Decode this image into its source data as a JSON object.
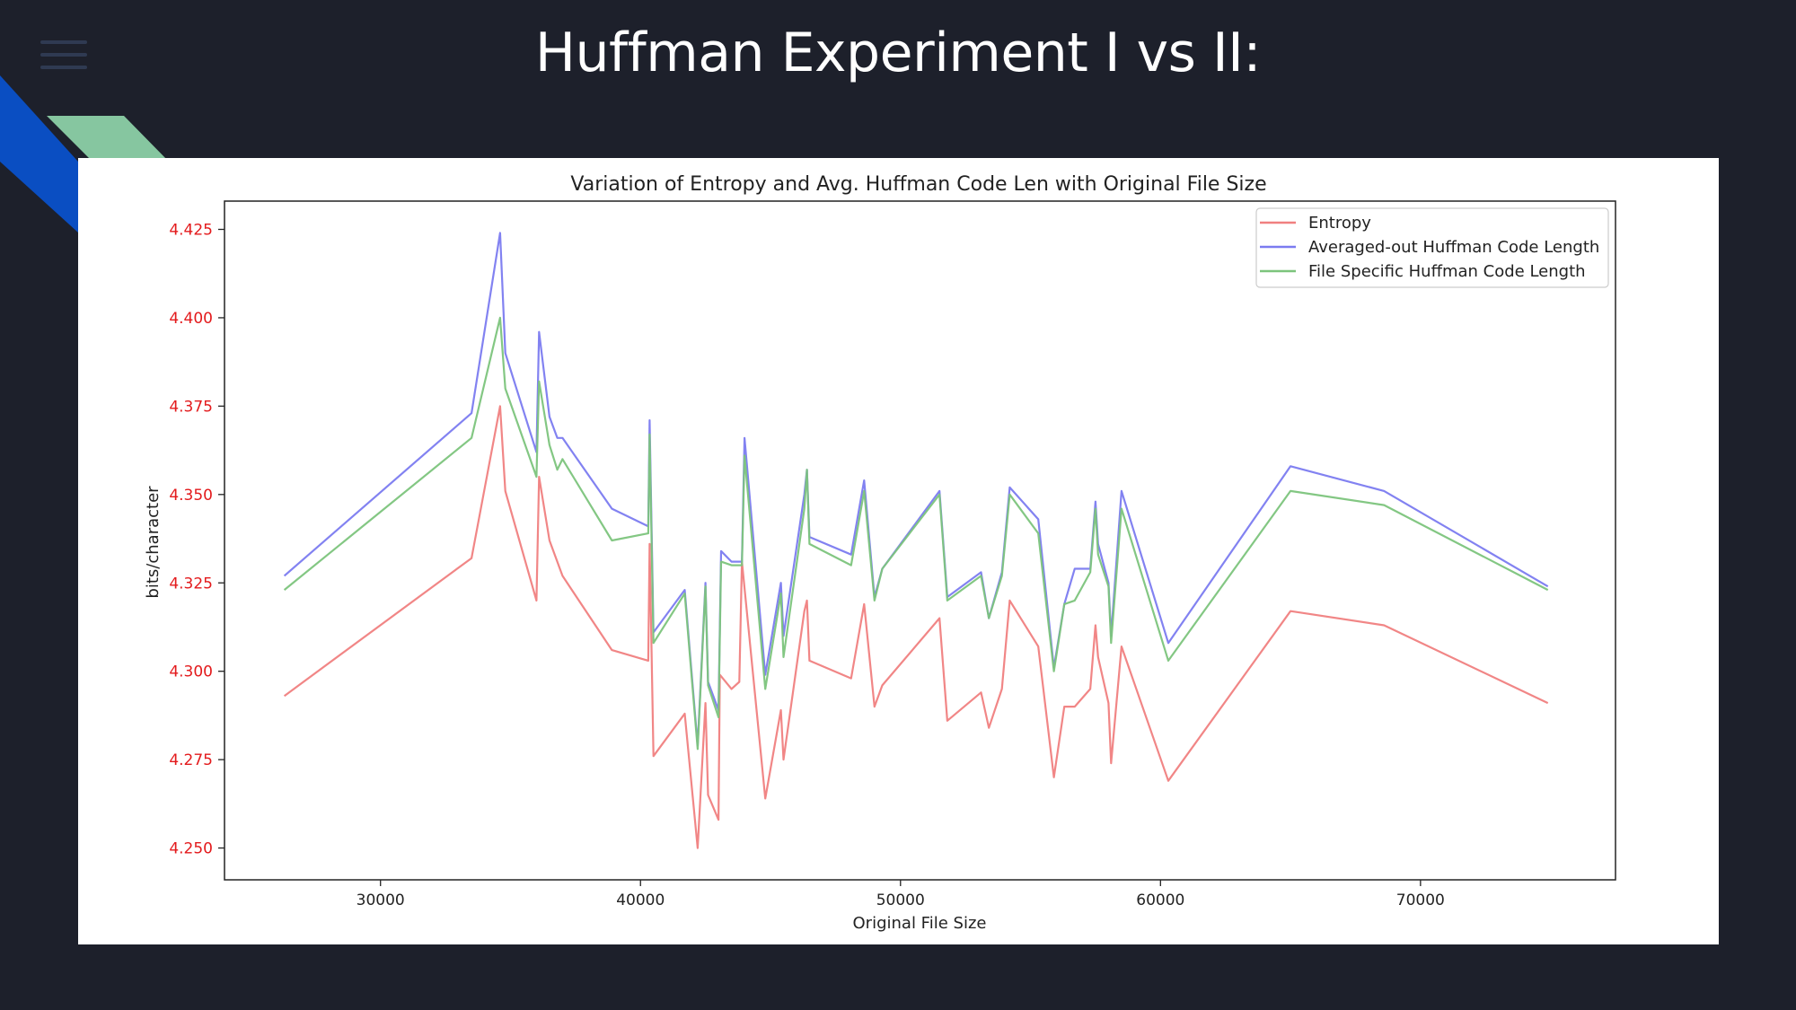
{
  "slide": {
    "title": "Huffman Experiment I vs II:"
  },
  "colors": {
    "background": "#1d202b",
    "entropy": "#f08080",
    "averaged": "#7b7bf0",
    "file_specific": "#7cc47c",
    "ytick": "#e31a1c",
    "deco_blue": "#0a4ec2",
    "deco_green": "#86c6a0"
  },
  "icons": {
    "menu": "hamburger-menu-icon"
  },
  "chart_data": {
    "type": "line",
    "title": "Variation of Entropy and Avg. Huffman Code Len with Original File Size",
    "xlabel": "Original File Size",
    "ylabel": "bits/character",
    "xlim": [
      24000,
      77500
    ],
    "ylim": [
      4.241,
      4.433
    ],
    "xticks": [
      30000,
      40000,
      50000,
      60000,
      70000
    ],
    "yticks": [
      4.25,
      4.275,
      4.3,
      4.325,
      4.35,
      4.375,
      4.4,
      4.425
    ],
    "xtick_labels": [
      "30000",
      "40000",
      "50000",
      "60000",
      "70000"
    ],
    "ytick_labels": [
      "4.250",
      "4.275",
      "4.300",
      "4.325",
      "4.350",
      "4.375",
      "4.400",
      "4.425"
    ],
    "legend": "top-right",
    "grid": false,
    "series": [
      {
        "name": "Entropy",
        "color": "#f08080",
        "x": [
          26300,
          33500,
          34600,
          34800,
          36000,
          36100,
          36500,
          37000,
          38900,
          40300,
          40350,
          40500,
          41700,
          42200,
          42500,
          42600,
          43000,
          43050,
          43500,
          43800,
          43900,
          44800,
          45400,
          45500,
          46300,
          46400,
          46500,
          48100,
          48600,
          49000,
          49300,
          51500,
          51800,
          53100,
          53400,
          53900,
          54200,
          55300,
          55900,
          56300,
          56700,
          57300,
          57500,
          57600,
          58000,
          58100,
          58500,
          60300,
          65000,
          68600,
          74900
        ],
        "y": [
          4.293,
          4.332,
          4.375,
          4.351,
          4.32,
          4.355,
          4.337,
          4.327,
          4.306,
          4.303,
          4.336,
          4.276,
          4.288,
          4.25,
          4.291,
          4.265,
          4.258,
          4.299,
          4.295,
          4.297,
          4.331,
          4.264,
          4.289,
          4.275,
          4.317,
          4.32,
          4.303,
          4.298,
          4.319,
          4.29,
          4.296,
          4.315,
          4.286,
          4.294,
          4.284,
          4.295,
          4.32,
          4.307,
          4.27,
          4.29,
          4.29,
          4.295,
          4.313,
          4.304,
          4.291,
          4.274,
          4.307,
          4.269,
          4.317,
          4.313,
          4.291
        ]
      },
      {
        "name": "Averaged-out Huffman Code Length",
        "color": "#7b7bf0",
        "x": [
          26300,
          33500,
          34600,
          34800,
          36000,
          36100,
          36500,
          36800,
          37000,
          38900,
          40300,
          40350,
          40500,
          41700,
          42200,
          42500,
          42600,
          43000,
          43100,
          43500,
          43900,
          44000,
          44800,
          45400,
          45500,
          46300,
          46400,
          46500,
          48100,
          48600,
          49000,
          49300,
          51500,
          51800,
          53100,
          53400,
          53900,
          54200,
          55300,
          55900,
          56300,
          56700,
          57300,
          57500,
          57600,
          58000,
          58100,
          58500,
          60300,
          65000,
          68600,
          74900
        ],
        "y": [
          4.327,
          4.373,
          4.424,
          4.39,
          4.362,
          4.396,
          4.372,
          4.366,
          4.366,
          4.346,
          4.341,
          4.371,
          4.311,
          4.323,
          4.279,
          4.325,
          4.297,
          4.289,
          4.334,
          4.331,
          4.331,
          4.366,
          4.299,
          4.325,
          4.31,
          4.35,
          4.357,
          4.338,
          4.333,
          4.354,
          4.321,
          4.329,
          4.351,
          4.321,
          4.328,
          4.315,
          4.328,
          4.352,
          4.343,
          4.301,
          4.319,
          4.329,
          4.329,
          4.348,
          4.336,
          4.325,
          4.31,
          4.351,
          4.308,
          4.358,
          4.351,
          4.324
        ]
      },
      {
        "name": "File Specific Huffman Code Length",
        "color": "#7cc47c",
        "x": [
          26300,
          33500,
          34600,
          34800,
          36000,
          36100,
          36500,
          36800,
          37000,
          38900,
          40300,
          40350,
          40500,
          41700,
          42200,
          42500,
          42600,
          43000,
          43100,
          43500,
          43900,
          44000,
          44800,
          45400,
          45500,
          46300,
          46400,
          46500,
          48100,
          48600,
          49000,
          49300,
          51500,
          51800,
          53100,
          53400,
          53900,
          54200,
          55300,
          55900,
          56300,
          56700,
          57300,
          57500,
          57600,
          58000,
          58100,
          58500,
          60300,
          65000,
          68600,
          74900
        ],
        "y": [
          4.323,
          4.366,
          4.4,
          4.38,
          4.355,
          4.382,
          4.364,
          4.357,
          4.36,
          4.337,
          4.339,
          4.367,
          4.308,
          4.322,
          4.278,
          4.324,
          4.296,
          4.287,
          4.331,
          4.33,
          4.33,
          4.361,
          4.295,
          4.322,
          4.304,
          4.346,
          4.357,
          4.336,
          4.33,
          4.351,
          4.32,
          4.329,
          4.35,
          4.32,
          4.327,
          4.315,
          4.327,
          4.35,
          4.339,
          4.3,
          4.319,
          4.32,
          4.328,
          4.346,
          4.333,
          4.324,
          4.308,
          4.346,
          4.303,
          4.351,
          4.347,
          4.323
        ]
      }
    ]
  }
}
